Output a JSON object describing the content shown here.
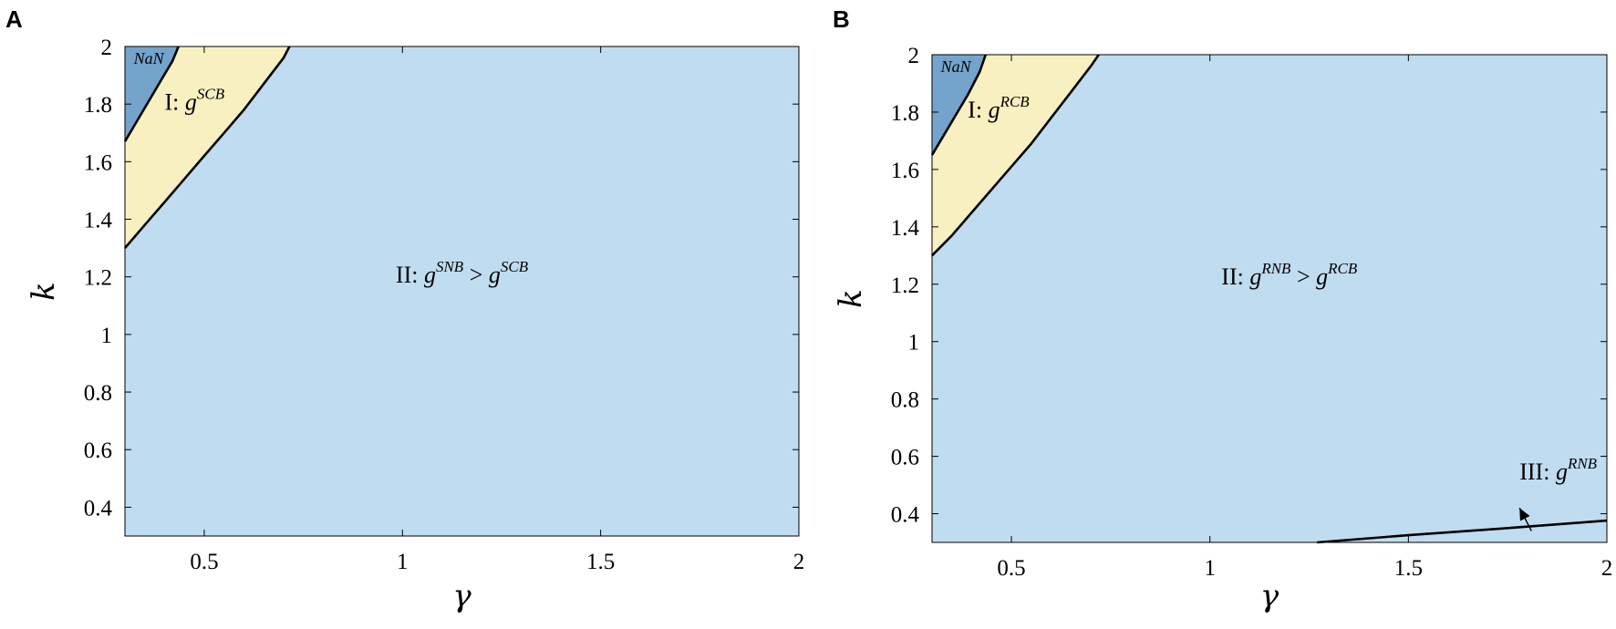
{
  "colors": {
    "region_main": "#c0dcf0",
    "region_yellow": "#f8f0c0",
    "region_nan": "#74a4cc",
    "boundary": "#000000"
  },
  "chart_data": [
    {
      "panel": "A",
      "type": "area",
      "xlabel": "γ",
      "ylabel": "k",
      "xlim": [
        0.3,
        2
      ],
      "ylim": [
        0.3,
        2
      ],
      "xticks": [
        0.5,
        1,
        1.5,
        2
      ],
      "xtick_labels": [
        "0.5",
        "1",
        "1.5",
        "2"
      ],
      "yticks": [
        0.4,
        0.6,
        0.8,
        1,
        1.2,
        1.4,
        1.6,
        1.8,
        2
      ],
      "ytick_labels": [
        "0.4",
        "0.6",
        "0.8",
        "1",
        "1.2",
        "1.4",
        "1.6",
        "1.8",
        "2"
      ],
      "grid": false,
      "boundaries": [
        {
          "name": "nan_boundary",
          "x": [
            0.3,
            0.33,
            0.36,
            0.39,
            0.42,
            0.435
          ],
          "y": [
            1.67,
            1.74,
            1.81,
            1.88,
            1.95,
            2.0
          ]
        },
        {
          "name": "I_boundary",
          "x": [
            0.3,
            0.35,
            0.4,
            0.45,
            0.5,
            0.55,
            0.6,
            0.65,
            0.7,
            0.715
          ],
          "y": [
            1.3,
            1.38,
            1.46,
            1.54,
            1.62,
            1.7,
            1.78,
            1.87,
            1.96,
            2.0
          ]
        }
      ],
      "regions": [
        {
          "id": "NaN",
          "text": "NaN",
          "at": [
            0.36,
            1.94
          ]
        },
        {
          "id": "I",
          "prefix": "I: ",
          "base": "g",
          "sup": "SCB",
          "at": [
            0.4,
            1.78
          ]
        },
        {
          "id": "II",
          "prefix": "II: ",
          "base": "g",
          "sup": "SNB",
          "op": " > ",
          "base2": "g",
          "sup2": "SCB",
          "at": [
            1.15,
            1.18
          ]
        }
      ]
    },
    {
      "panel": "B",
      "type": "area",
      "xlabel": "γ",
      "ylabel": "k",
      "xlim": [
        0.3,
        2
      ],
      "ylim": [
        0.3,
        2
      ],
      "xticks": [
        0.5,
        1,
        1.5,
        2
      ],
      "xtick_labels": [
        "0.5",
        "1",
        "1.5",
        "2"
      ],
      "yticks": [
        0.4,
        0.6,
        0.8,
        1,
        1.2,
        1.4,
        1.6,
        1.8,
        2
      ],
      "ytick_labels": [
        "0.4",
        "0.6",
        "0.8",
        "1",
        "1.2",
        "1.4",
        "1.6",
        "1.8",
        "2"
      ],
      "grid": false,
      "boundaries": [
        {
          "name": "nan_boundary",
          "x": [
            0.3,
            0.33,
            0.36,
            0.39,
            0.42,
            0.435
          ],
          "y": [
            1.65,
            1.72,
            1.79,
            1.86,
            1.94,
            2.0
          ]
        },
        {
          "name": "I_boundary",
          "x": [
            0.3,
            0.35,
            0.4,
            0.45,
            0.5,
            0.55,
            0.6,
            0.65,
            0.7,
            0.72
          ],
          "y": [
            1.3,
            1.37,
            1.45,
            1.53,
            1.61,
            1.69,
            1.78,
            1.87,
            1.96,
            2.0
          ]
        },
        {
          "name": "III_boundary",
          "x": [
            1.27,
            1.5,
            1.75,
            2.0
          ],
          "y": [
            0.3,
            0.325,
            0.35,
            0.376
          ]
        }
      ],
      "regions": [
        {
          "id": "NaN",
          "text": "NaN",
          "at": [
            0.36,
            1.94
          ]
        },
        {
          "id": "I",
          "prefix": "I: ",
          "base": "g",
          "sup": "RCB",
          "at": [
            0.39,
            1.78
          ]
        },
        {
          "id": "II",
          "prefix": "II: ",
          "base": "g",
          "sup": "RNB",
          "op": " > ",
          "base2": "g",
          "sup2": "RCB",
          "at": [
            1.2,
            1.2
          ]
        },
        {
          "id": "III",
          "prefix": "III: ",
          "base": "g",
          "sup": "RNB",
          "at": [
            1.78,
            0.52
          ]
        }
      ],
      "annotations": [
        {
          "type": "arrow",
          "from": [
            1.81,
            0.34
          ],
          "to": [
            1.78,
            0.42
          ]
        }
      ]
    }
  ]
}
